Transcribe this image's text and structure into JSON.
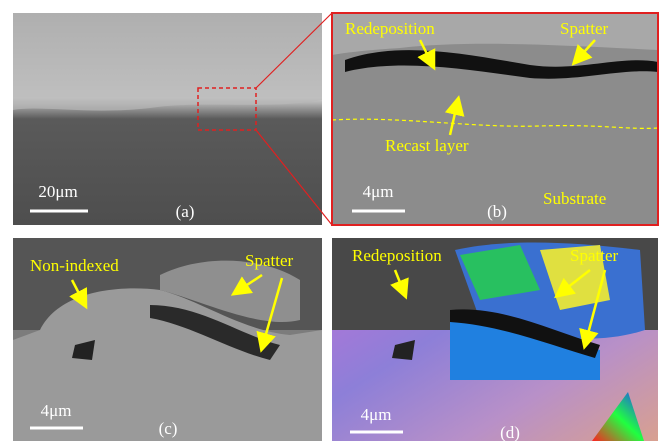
{
  "panels": [
    {
      "label": "(a)",
      "scale_bar": "20μm",
      "annotations": []
    },
    {
      "label": "(b)",
      "scale_bar": "4μm",
      "annotations": [
        "Redeposition",
        "Spatter",
        "Recast layer",
        "Substrate"
      ]
    },
    {
      "label": "(c)",
      "scale_bar": "4μm",
      "annotations": [
        "Non-indexed",
        "Spatter"
      ]
    },
    {
      "label": "(d)",
      "scale_bar": "4μm",
      "annotations": [
        "Redeposition",
        "Spatter"
      ]
    }
  ]
}
